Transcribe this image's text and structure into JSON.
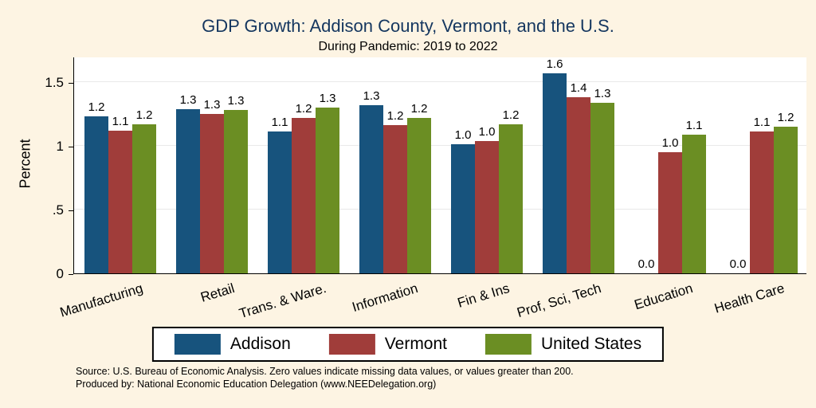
{
  "title": "GDP Growth: Addison County, Vermont, and the U.S.",
  "subtitle": "During Pandemic: 2019 to 2022",
  "ylabel": "Percent",
  "notes": [
    "Source: U.S. Bureau of Economic Analysis. Zero values indicate missing data values, or values greater than 200.",
    "Produced by: National Economic Education Delegation (www.NEEDelegation.org)"
  ],
  "colors": {
    "background": "#fdf4e3",
    "plot_background": "#ffffff",
    "title": "#14365f",
    "addison": "#17537d",
    "vermont": "#a03d3a",
    "united_states": "#6b8e23"
  },
  "chart_data": {
    "type": "bar",
    "title": "GDP Growth: Addison County, Vermont, and the U.S.",
    "subtitle": "During Pandemic: 2019 to 2022",
    "xlabel": "",
    "ylabel": "Percent",
    "ylim": [
      0,
      1.7
    ],
    "grid": true,
    "legend_position": "bottom",
    "yticks": [
      {
        "label": "0",
        "value": 0
      },
      {
        "label": ".5",
        "value": 0.5
      },
      {
        "label": "1",
        "value": 1
      },
      {
        "label": "1.5",
        "value": 1.5
      }
    ],
    "categories": [
      "Manufacturing",
      "Retail",
      "Trans. & Ware.",
      "Information",
      "Fin & Ins",
      "Prof, Sci, Tech",
      "Education",
      "Health Care"
    ],
    "series": [
      {
        "name": "Addison",
        "color": "#17537d",
        "values": [
          1.23,
          1.29,
          1.11,
          1.32,
          1.01,
          1.57,
          0.0,
          0.0
        ],
        "labels": [
          "1.2",
          "1.3",
          "1.1",
          "1.3",
          "1.0",
          "1.6",
          "0.0",
          "0.0"
        ]
      },
      {
        "name": "Vermont",
        "color": "#a03d3a",
        "values": [
          1.12,
          1.25,
          1.22,
          1.16,
          1.04,
          1.38,
          0.95,
          1.11
        ],
        "labels": [
          "1.1",
          "1.3",
          "1.2",
          "1.2",
          "1.0",
          "1.4",
          "1.0",
          "1.1"
        ]
      },
      {
        "name": "United States",
        "color": "#6b8e23",
        "values": [
          1.17,
          1.28,
          1.3,
          1.22,
          1.17,
          1.34,
          1.09,
          1.15
        ],
        "labels": [
          "1.2",
          "1.3",
          "1.3",
          "1.2",
          "1.2",
          "1.3",
          "1.1",
          "1.2"
        ]
      }
    ]
  },
  "legend": {
    "items": [
      {
        "label": "Addison"
      },
      {
        "label": "Vermont"
      },
      {
        "label": "United States"
      }
    ]
  }
}
